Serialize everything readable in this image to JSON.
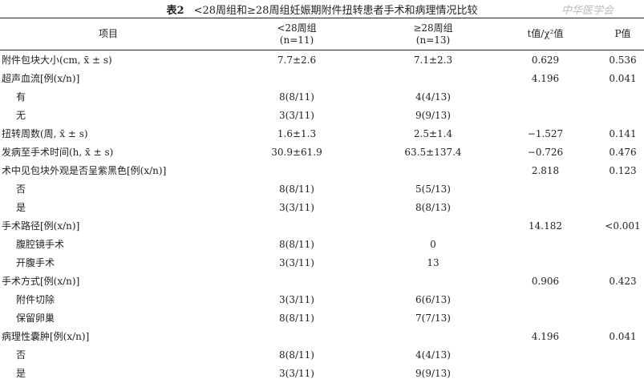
{
  "title": {
    "label": "表2",
    "text": "<28周组和≥28周组妊娠期附件扭转患者手术和病理情况比较"
  },
  "watermark": "中华医学会",
  "headers": [
    {
      "line1": "项目",
      "line2": ""
    },
    {
      "line1": "<28周组",
      "line2": "(n=11)"
    },
    {
      "line1": "≥28周组",
      "line2": "(n=13)"
    },
    {
      "line1": "t值/χ²值",
      "line2": ""
    },
    {
      "line1": "P值",
      "line2": ""
    }
  ],
  "rows": [
    {
      "item": "附件包块大小(cm, x̄ ± s)",
      "sub": false,
      "a": "7.7±2.6",
      "b": "7.1±2.3",
      "t": "0.629",
      "p": "0.536"
    },
    {
      "item": "超声血流[例(x/n)]",
      "sub": false,
      "a": "",
      "b": "",
      "t": "4.196",
      "p": "0.041"
    },
    {
      "item": "有",
      "sub": true,
      "a": "8(8/11)",
      "b": "4(4/13)",
      "t": "",
      "p": ""
    },
    {
      "item": "无",
      "sub": true,
      "a": "3(3/11)",
      "b": "9(9/13)",
      "t": "",
      "p": ""
    },
    {
      "item": "扭转周数(周, x̄ ± s)",
      "sub": false,
      "a": "1.6±1.3",
      "b": "2.5±1.4",
      "t": "−1.527",
      "p": "0.141"
    },
    {
      "item": "发病至手术时间(h, x̄ ± s)",
      "sub": false,
      "a": "30.9±61.9",
      "b": "63.5±137.4",
      "t": "−0.726",
      "p": "0.476"
    },
    {
      "item": "术中见包块外观是否呈紫黑色[例(x/n)]",
      "sub": false,
      "a": "",
      "b": "",
      "t": "2.818",
      "p": "0.123"
    },
    {
      "item": "否",
      "sub": true,
      "a": "8(8/11)",
      "b": "5(5/13)",
      "t": "",
      "p": ""
    },
    {
      "item": "是",
      "sub": true,
      "a": "3(3/11)",
      "b": "8(8/13)",
      "t": "",
      "p": ""
    },
    {
      "item": "手术路径[例(x/n)]",
      "sub": false,
      "a": "",
      "b": "",
      "t": "14.182",
      "p": "<0.001"
    },
    {
      "item": "腹腔镜手术",
      "sub": true,
      "a": "8(8/11)",
      "b": "0",
      "t": "",
      "p": ""
    },
    {
      "item": "开腹手术",
      "sub": true,
      "a": "3(3/11)",
      "b": "13",
      "t": "",
      "p": ""
    },
    {
      "item": "手术方式[例(x/n)]",
      "sub": false,
      "a": "",
      "b": "",
      "t": "0.906",
      "p": "0.423"
    },
    {
      "item": "附件切除",
      "sub": true,
      "a": "3(3/11)",
      "b": "6(6/13)",
      "t": "",
      "p": ""
    },
    {
      "item": "保留卵巢",
      "sub": true,
      "a": "8(8/11)",
      "b": "7(7/13)",
      "t": "",
      "p": ""
    },
    {
      "item": "病理性囊肿[例(x/n)]",
      "sub": false,
      "a": "",
      "b": "",
      "t": "4.196",
      "p": "0.041"
    },
    {
      "item": "否",
      "sub": true,
      "a": "8(8/11)",
      "b": "4(4/13)",
      "t": "",
      "p": ""
    },
    {
      "item": "是",
      "sub": true,
      "a": "3(3/11)",
      "b": "9(9/13)",
      "t": "",
      "p": ""
    }
  ]
}
